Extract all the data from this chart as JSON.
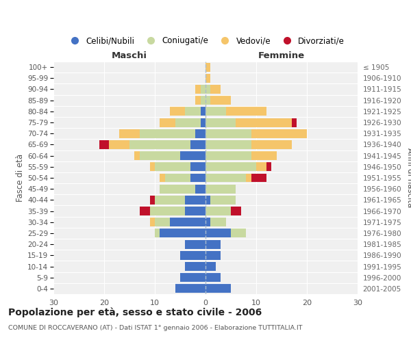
{
  "age_groups": [
    "0-4",
    "5-9",
    "10-14",
    "15-19",
    "20-24",
    "25-29",
    "30-34",
    "35-39",
    "40-44",
    "45-49",
    "50-54",
    "55-59",
    "60-64",
    "65-69",
    "70-74",
    "75-79",
    "80-84",
    "85-89",
    "90-94",
    "95-99",
    "100+"
  ],
  "birth_years": [
    "2001-2005",
    "1996-2000",
    "1991-1995",
    "1986-1990",
    "1981-1985",
    "1976-1980",
    "1971-1975",
    "1966-1970",
    "1961-1965",
    "1956-1960",
    "1951-1955",
    "1946-1950",
    "1941-1945",
    "1936-1940",
    "1931-1935",
    "1926-1930",
    "1921-1925",
    "1916-1920",
    "1911-1915",
    "1906-1910",
    "≤ 1905"
  ],
  "colors": {
    "celibe": "#4472C4",
    "coniugato": "#C8D9A0",
    "vedovo": "#F5C56A",
    "divorziato": "#C0112B"
  },
  "male": {
    "celibe": [
      6,
      5,
      4,
      5,
      4,
      9,
      7,
      4,
      4,
      2,
      3,
      3,
      5,
      3,
      2,
      1,
      1,
      0,
      0,
      0,
      0
    ],
    "coniugato": [
      0,
      0,
      0,
      0,
      0,
      1,
      3,
      7,
      6,
      7,
      5,
      7,
      8,
      12,
      11,
      5,
      3,
      1,
      1,
      0,
      0
    ],
    "vedovo": [
      0,
      0,
      0,
      0,
      0,
      0,
      1,
      0,
      0,
      0,
      1,
      1,
      1,
      4,
      4,
      3,
      3,
      1,
      1,
      0,
      0
    ],
    "divorziato": [
      0,
      0,
      0,
      0,
      0,
      0,
      0,
      2,
      1,
      0,
      0,
      0,
      0,
      2,
      0,
      0,
      0,
      0,
      0,
      0,
      0
    ]
  },
  "female": {
    "nubile": [
      5,
      3,
      2,
      3,
      3,
      5,
      1,
      0,
      1,
      0,
      0,
      0,
      0,
      0,
      0,
      0,
      0,
      0,
      0,
      0,
      0
    ],
    "coniugata": [
      0,
      0,
      0,
      0,
      0,
      3,
      3,
      5,
      5,
      6,
      8,
      10,
      9,
      9,
      9,
      6,
      4,
      1,
      1,
      0,
      0
    ],
    "vedova": [
      0,
      0,
      0,
      0,
      0,
      0,
      0,
      0,
      0,
      0,
      1,
      2,
      5,
      8,
      11,
      11,
      8,
      4,
      2,
      1,
      1
    ],
    "divorziata": [
      0,
      0,
      0,
      0,
      0,
      0,
      0,
      2,
      0,
      0,
      3,
      1,
      0,
      0,
      0,
      1,
      0,
      0,
      0,
      0,
      0
    ]
  },
  "xlim": 30,
  "title": "Popolazione per età, sesso e stato civile - 2006",
  "subtitle": "COMUNE DI ROCCAVERANO (AT) - Dati ISTAT 1° gennaio 2006 - Elaborazione TUTTITALIA.IT",
  "xlabel_left": "Maschi",
  "xlabel_right": "Femmine",
  "ylabel_left": "Fasce di età",
  "ylabel_right": "Anni di nascita",
  "legend_labels": [
    "Celibi/Nubili",
    "Coniugati/e",
    "Vedovi/e",
    "Divorziati/e"
  ],
  "bg_color": "#ffffff",
  "plot_bg": "#f0f0f0",
  "grid_color": "#ffffff"
}
